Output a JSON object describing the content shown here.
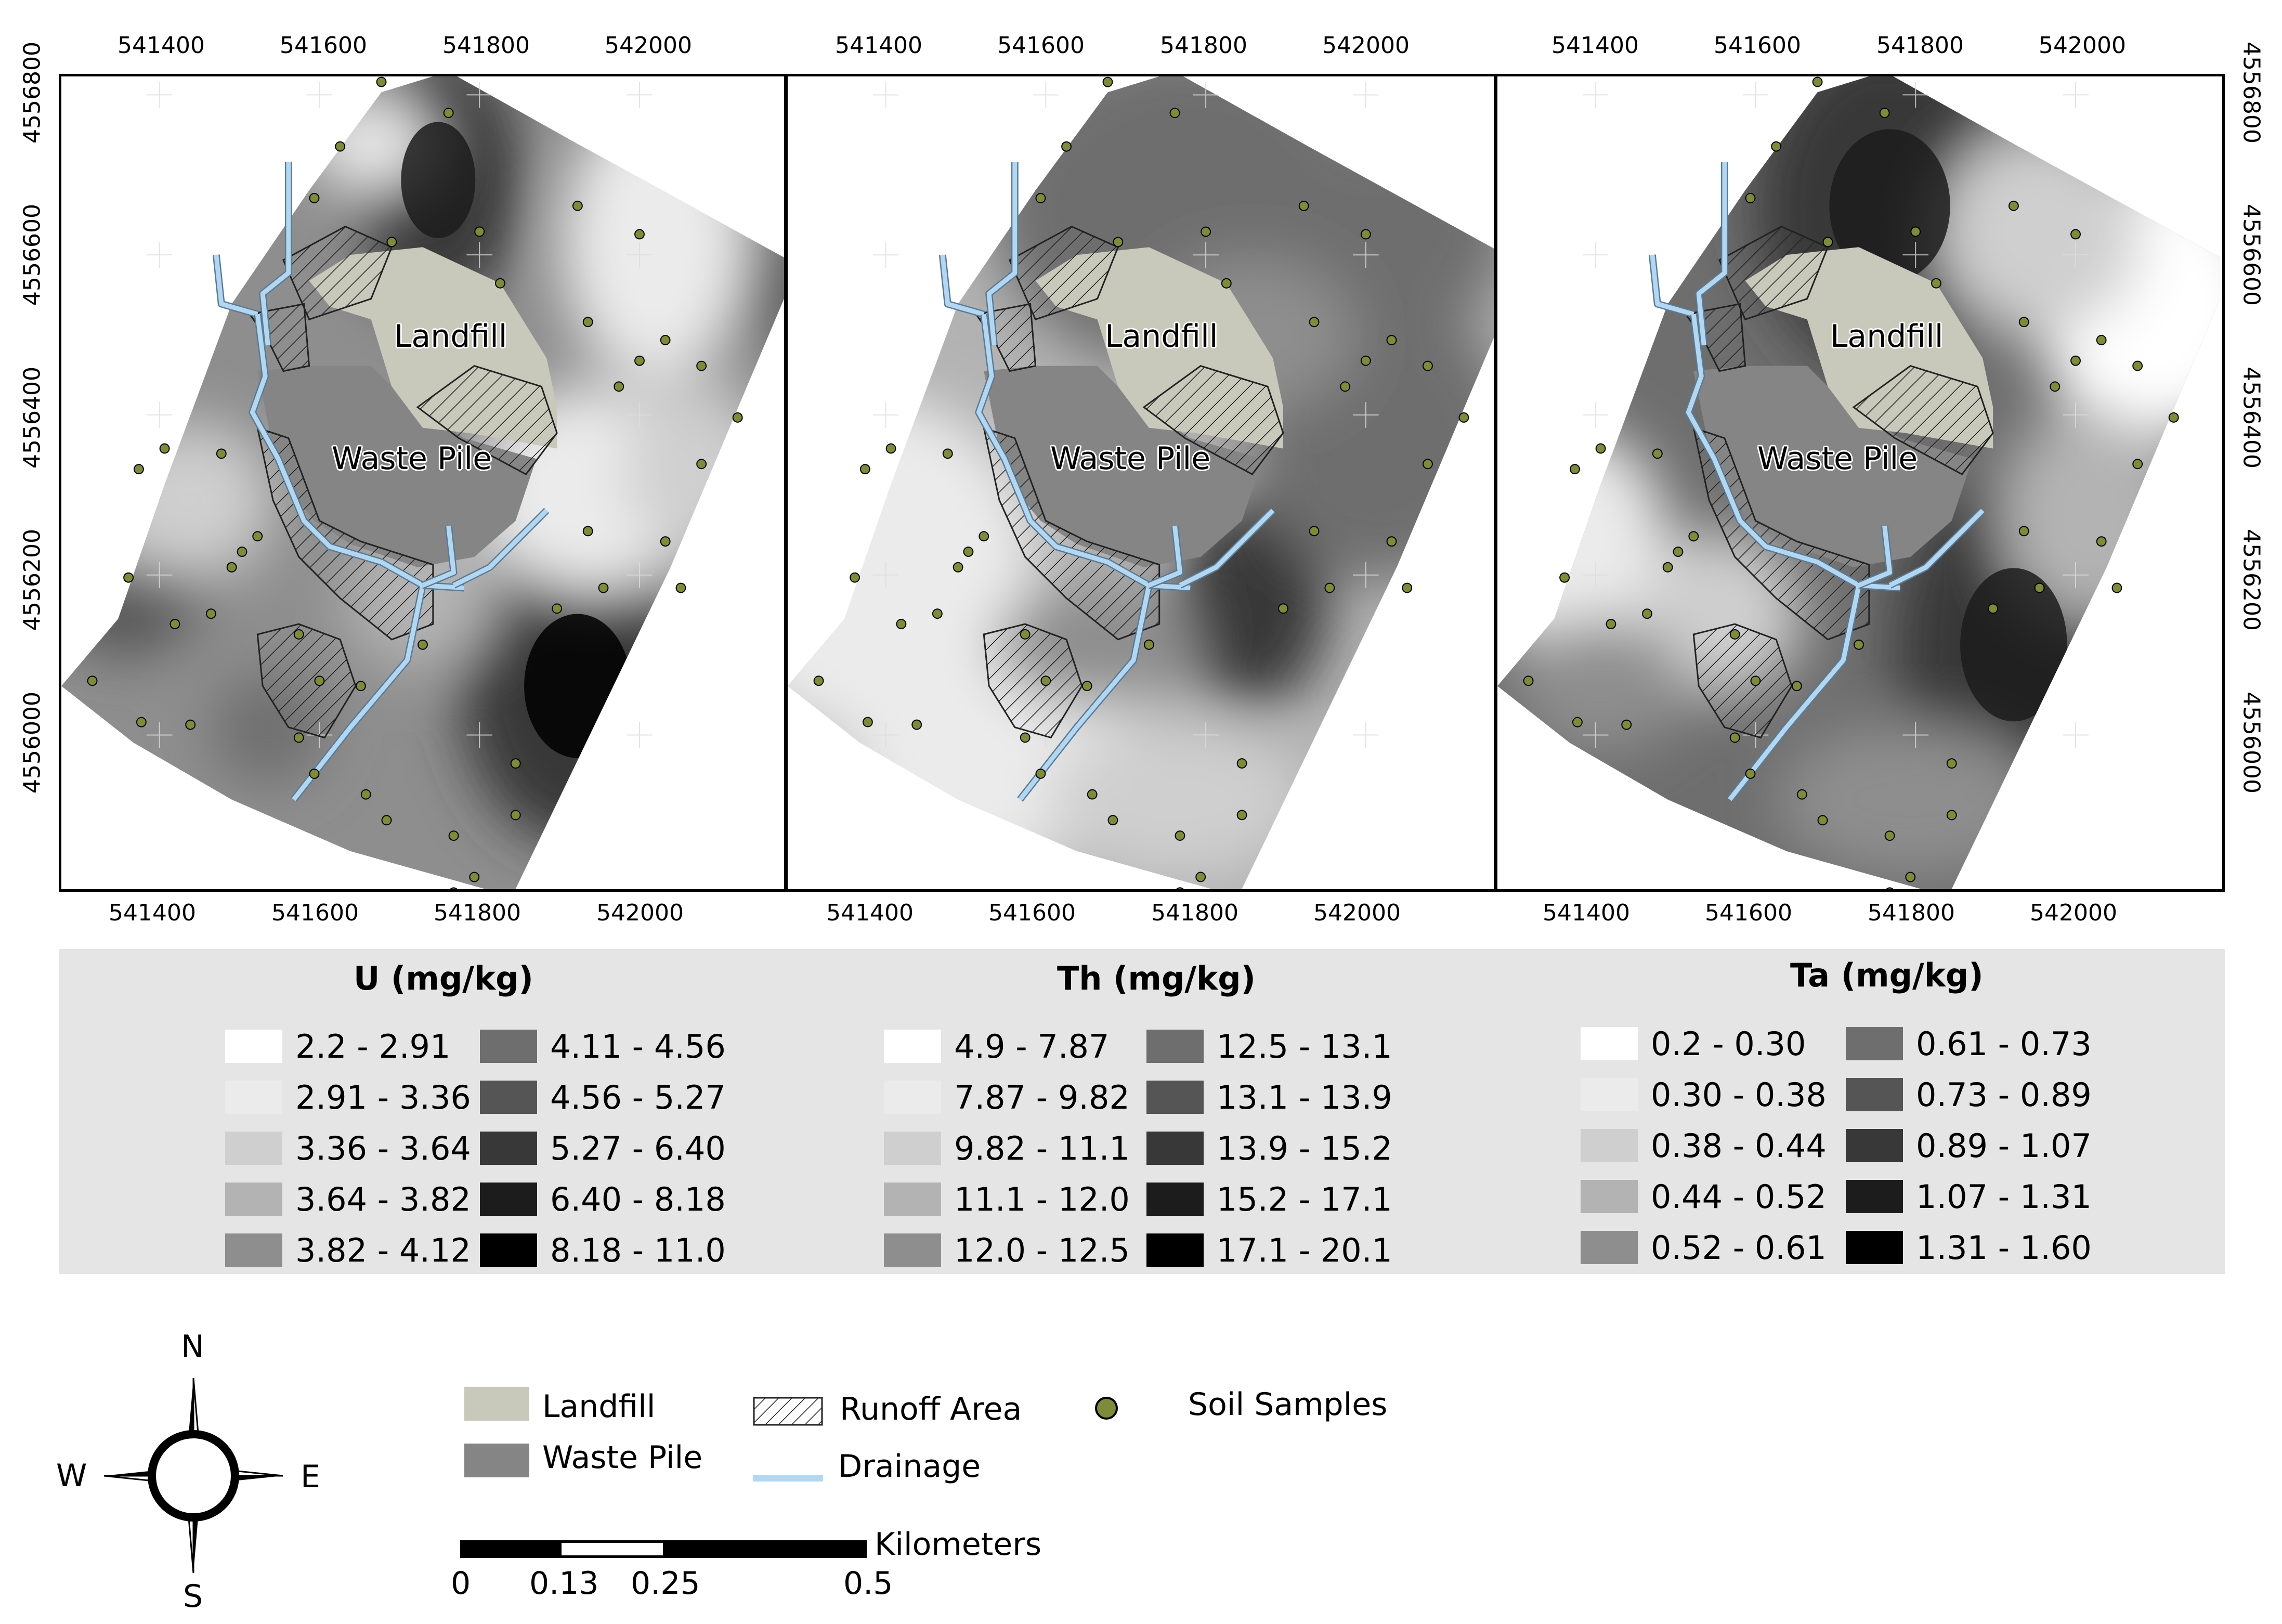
{
  "axis": {
    "x_ticks": [
      "541400",
      "541600",
      "541800",
      "542000"
    ],
    "y_ticks": [
      "4556800",
      "4556600",
      "4556400",
      "4556200",
      "4556000"
    ]
  },
  "map_labels": {
    "landfill": "Landfill",
    "waste_pile": "Waste Pile"
  },
  "legends": [
    {
      "title": "U (mg/kg)",
      "classes": [
        "2.2 - 2.91",
        "2.91 - 3.36",
        "3.36 - 3.64",
        "3.64 - 3.82",
        "3.82 - 4.12",
        "4.11 - 4.56",
        "4.56 - 5.27",
        "5.27 - 6.40",
        "6.40 - 8.18",
        "8.18 - 11.0"
      ]
    },
    {
      "title": "Th (mg/kg)",
      "classes": [
        "4.9 - 7.87",
        "7.87 - 9.82",
        "9.82 - 11.1",
        "11.1 - 12.0",
        "12.0 - 12.5",
        "12.5 - 13.1",
        "13.1 - 13.9",
        "13.9 - 15.2",
        "15.2 - 17.1",
        "17.1 - 20.1"
      ]
    },
    {
      "title": "Ta (mg/kg)",
      "classes": [
        "0.2 - 0.30",
        "0.30 - 0.38",
        "0.38 - 0.44",
        "0.44 - 0.52",
        "0.52 - 0.61",
        "0.61 - 0.73",
        "0.73 - 0.89",
        "0.89 - 1.07",
        "1.07 - 1.31",
        "1.31 - 1.60"
      ]
    }
  ],
  "class_colors": [
    "#ffffff",
    "#ebebeb",
    "#cfcfcf",
    "#b3b3b3",
    "#8e8e8e",
    "#6e6e6e",
    "#555555",
    "#383838",
    "#1c1c1c",
    "#000000"
  ],
  "bottom_legend": {
    "landfill": "Landfill",
    "waste_pile": "Waste Pile",
    "runoff": "Runoff Area",
    "drainage": "Drainage",
    "soil_samples": "Soil Samples"
  },
  "colors": {
    "landfill": "#c8c8bb",
    "waste_pile": "#858585",
    "drainage": "#b3d7f0",
    "sample": "#7f8a3a"
  },
  "north_arrow": {
    "n": "N",
    "s": "S",
    "e": "E",
    "w": "W"
  },
  "scale_bar": {
    "unit": "Kilometers",
    "labels": [
      "0",
      "0.13",
      "0.25",
      "0.5"
    ]
  }
}
